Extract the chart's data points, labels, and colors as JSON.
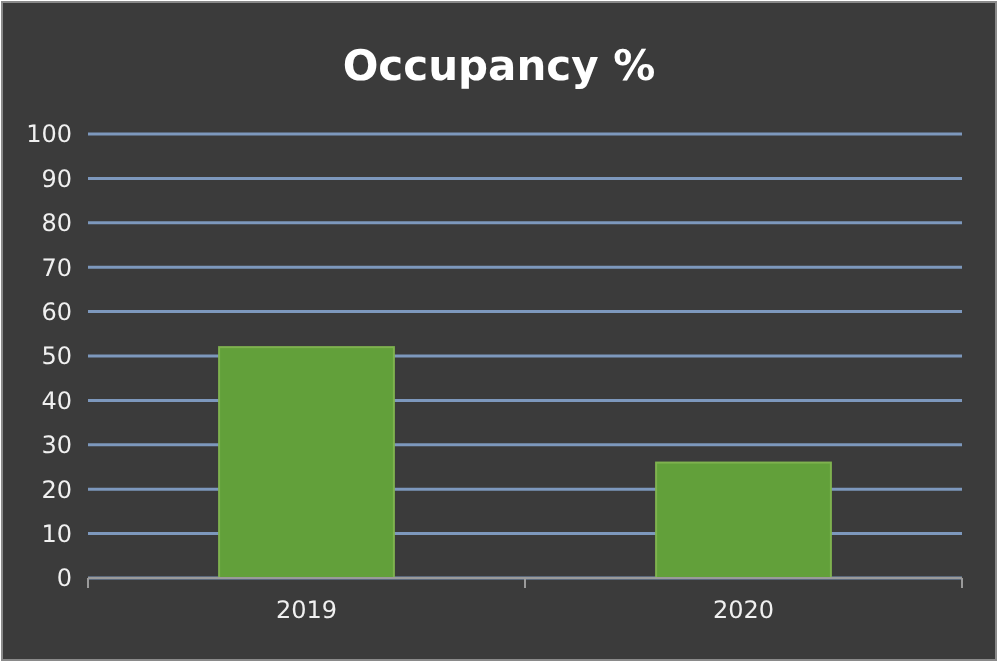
{
  "chart_data": {
    "type": "bar",
    "title": "Occupancy %",
    "categories": [
      "2019",
      "2020"
    ],
    "values": [
      52,
      26
    ],
    "color": "#62a03a",
    "ylim": [
      0,
      100
    ],
    "yticks": [
      0,
      10,
      20,
      30,
      40,
      50,
      60,
      70,
      80,
      90,
      100
    ],
    "grid": "y"
  }
}
